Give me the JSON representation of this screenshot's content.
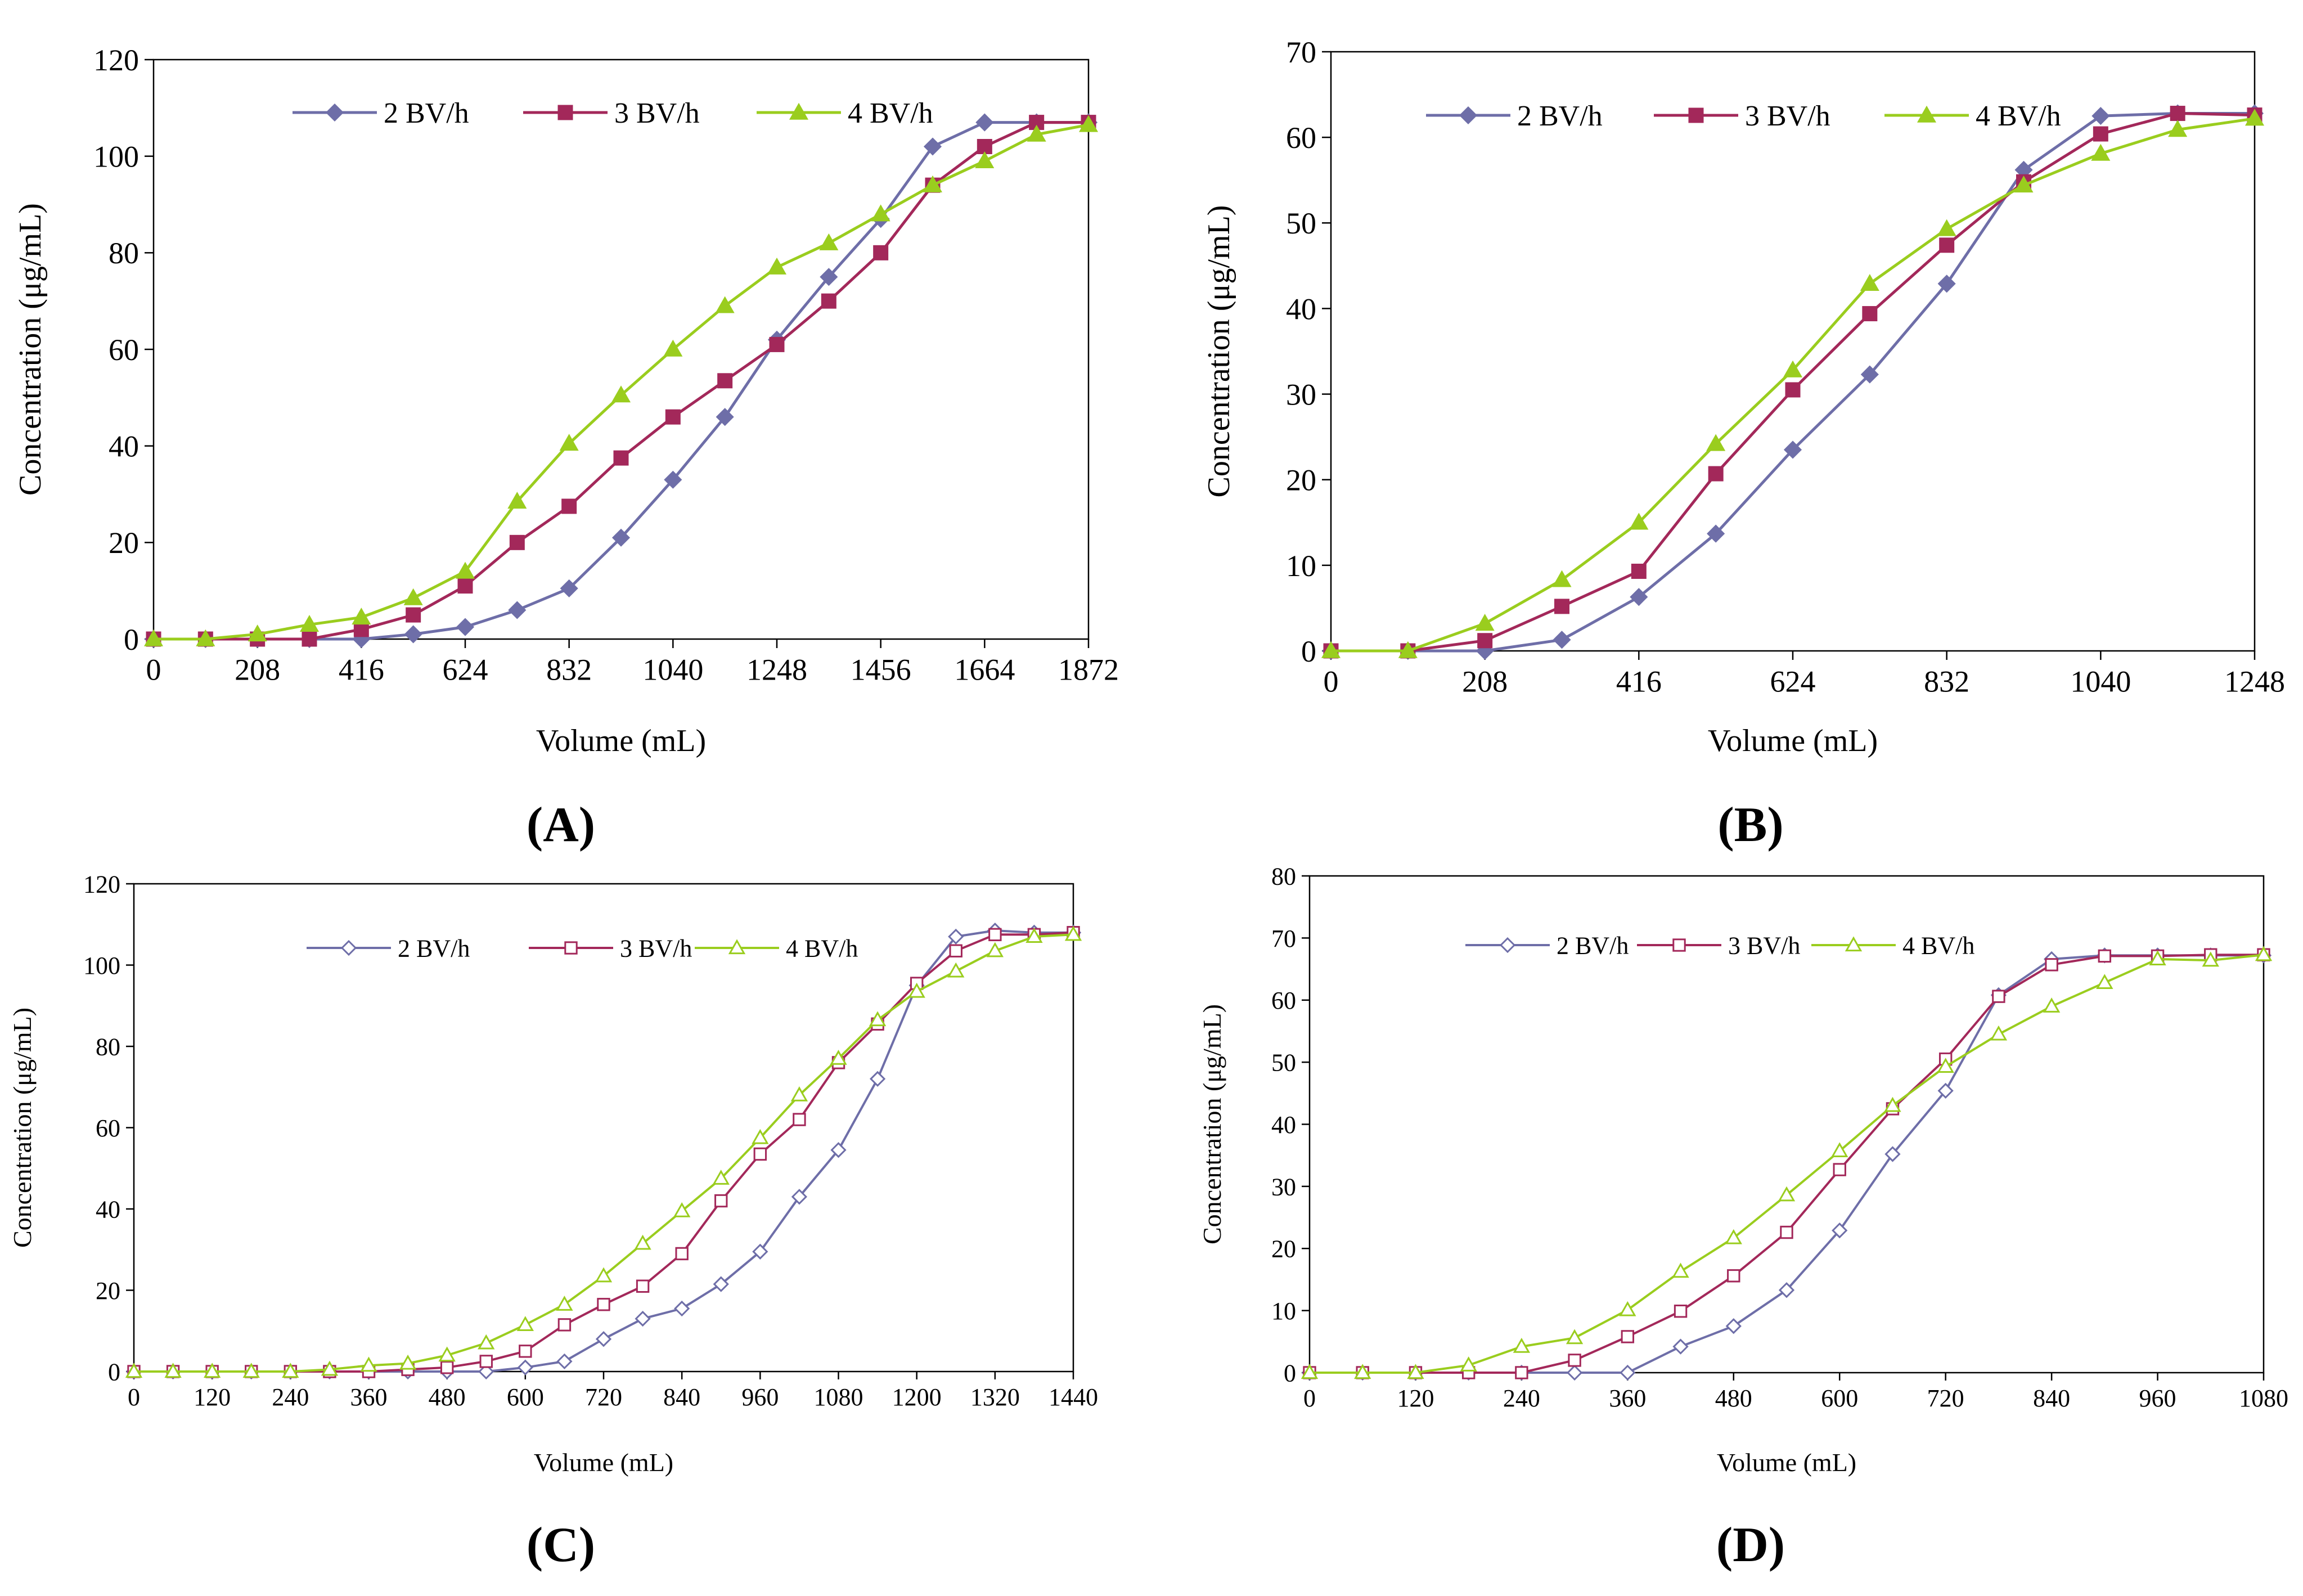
{
  "chart_data": [
    {
      "panel": "(A)",
      "type": "line",
      "xlabel": "Volume (mL)",
      "ylabel": "Concentration (μg/mL)",
      "xlim": [
        0,
        1872
      ],
      "ylim": [
        0,
        120
      ],
      "xticks": [
        0,
        208,
        416,
        624,
        832,
        1040,
        1248,
        1456,
        1664,
        1872
      ],
      "yticks": [
        0,
        20,
        40,
        60,
        80,
        100,
        120
      ],
      "marker_fill": true,
      "legend": "top",
      "grid": false,
      "x": [
        0,
        104,
        208,
        312,
        416,
        520,
        624,
        728,
        832,
        936,
        1040,
        1144,
        1248,
        1352,
        1456,
        1560,
        1664,
        1768,
        1872
      ],
      "series": [
        {
          "name": "2 BV/h",
          "color": "#6E6EA8",
          "marker": "diamond",
          "values": [
            0,
            0,
            0,
            0,
            0,
            1,
            2.5,
            6,
            10.5,
            21,
            33,
            46,
            62,
            75,
            87,
            102,
            107,
            107,
            107
          ]
        },
        {
          "name": "3 BV/h",
          "color": "#A3285A",
          "marker": "square",
          "values": [
            0,
            0,
            0,
            0,
            2,
            5,
            11,
            20,
            27.5,
            37.5,
            46,
            53.5,
            61,
            70,
            80,
            94,
            102,
            107,
            107
          ]
        },
        {
          "name": "4 BV/h",
          "color": "#9ACD1E",
          "marker": "triangle",
          "values": [
            0,
            0,
            1,
            3,
            4.5,
            8.5,
            14,
            28.5,
            40.5,
            50.5,
            60,
            69,
            77,
            82,
            88,
            94,
            99,
            104.5,
            106.5
          ]
        }
      ]
    },
    {
      "panel": "(B)",
      "type": "line",
      "xlabel": "Volume (mL)",
      "ylabel": "Concentration (μg/mL)",
      "xlim": [
        0,
        1248
      ],
      "ylim": [
        0,
        70
      ],
      "xticks": [
        0,
        208,
        416,
        624,
        832,
        1040,
        1248
      ],
      "yticks": [
        0,
        10,
        20,
        30,
        40,
        50,
        60,
        70
      ],
      "marker_fill": true,
      "legend": "top",
      "grid": false,
      "x": [
        0,
        104,
        208,
        312,
        416,
        520,
        624,
        728,
        832,
        936,
        1040,
        1144,
        1248
      ],
      "series": [
        {
          "name": "2 BV/h",
          "color": "#6E6EA8",
          "marker": "diamond",
          "values": [
            0,
            0,
            0,
            1.3,
            6.3,
            13.7,
            23.5,
            32.3,
            42.9,
            56.2,
            62.5,
            62.8,
            62.8
          ]
        },
        {
          "name": "3 BV/h",
          "color": "#A3285A",
          "marker": "square",
          "values": [
            0,
            0,
            1.2,
            5.2,
            9.3,
            20.7,
            30.5,
            39.4,
            47.4,
            54.8,
            60.4,
            62.8,
            62.6
          ]
        },
        {
          "name": "4 BV/h",
          "color": "#9ACD1E",
          "marker": "triangle",
          "values": [
            0,
            0,
            3.2,
            8.3,
            15,
            24.2,
            32.8,
            42.9,
            49.3,
            54.4,
            58.1,
            60.9,
            62.2
          ]
        }
      ]
    },
    {
      "panel": "(C)",
      "type": "line",
      "xlabel": "Volume (mL)",
      "ylabel": "Concentration (μg/mL)",
      "xlim": [
        0,
        1440
      ],
      "ylim": [
        0,
        120
      ],
      "xticks": [
        0,
        120,
        240,
        360,
        480,
        600,
        720,
        840,
        960,
        1080,
        1200,
        1320,
        1440
      ],
      "yticks": [
        0,
        20,
        40,
        60,
        80,
        100,
        120
      ],
      "marker_fill": false,
      "legend": "top",
      "grid": false,
      "x": [
        0,
        60,
        120,
        180,
        240,
        300,
        360,
        420,
        480,
        540,
        600,
        660,
        720,
        780,
        840,
        900,
        960,
        1020,
        1080,
        1140,
        1200,
        1260,
        1320,
        1380,
        1440
      ],
      "series": [
        {
          "name": "2 BV/h",
          "color": "#6E6EA8",
          "marker": "diamond",
          "values": [
            0,
            0,
            0,
            0,
            0,
            0,
            0,
            0,
            0,
            0,
            1,
            2.5,
            8,
            13,
            15.5,
            21.5,
            29.5,
            43,
            54.5,
            72,
            95,
            107,
            108.5,
            108,
            108
          ]
        },
        {
          "name": "3 BV/h",
          "color": "#A3285A",
          "marker": "square",
          "values": [
            0,
            0,
            0,
            0,
            0,
            0,
            0,
            0.5,
            1,
            2.5,
            5,
            11.5,
            16.5,
            21,
            29,
            42,
            53.5,
            62,
            76,
            85.5,
            95.5,
            103.5,
            107.5,
            107.5,
            108
          ]
        },
        {
          "name": "4 BV/h",
          "color": "#9ACD1E",
          "marker": "triangle",
          "values": [
            0,
            0,
            0,
            0,
            0,
            0.5,
            1.5,
            2,
            4,
            7,
            11.5,
            16.5,
            23.5,
            31.5,
            39.5,
            47.5,
            57.5,
            68,
            77,
            86.5,
            93.5,
            98.5,
            103.5,
            107,
            107.5
          ]
        }
      ]
    },
    {
      "panel": "(D)",
      "type": "line",
      "xlabel": "Volume (mL)",
      "ylabel": "Concentration (μg/mL)",
      "xlim": [
        0,
        1080
      ],
      "ylim": [
        0,
        80
      ],
      "xticks": [
        0,
        120,
        240,
        360,
        480,
        600,
        720,
        840,
        960,
        1080
      ],
      "yticks": [
        0,
        10,
        20,
        30,
        40,
        50,
        60,
        70,
        80
      ],
      "marker_fill": false,
      "legend": "top",
      "grid": false,
      "x": [
        0,
        60,
        120,
        180,
        240,
        300,
        360,
        420,
        480,
        540,
        600,
        660,
        720,
        780,
        840,
        900,
        960,
        1020,
        1080
      ],
      "series": [
        {
          "name": "2 BV/h",
          "color": "#6E6EA8",
          "marker": "diamond",
          "values": [
            0,
            0,
            0,
            0,
            0,
            0,
            0,
            4.2,
            7.5,
            13.3,
            22.9,
            35.2,
            45.4,
            60.8,
            66.6,
            67.2,
            67.2,
            67.2,
            67.2
          ]
        },
        {
          "name": "3 BV/h",
          "color": "#A3285A",
          "marker": "square",
          "values": [
            0,
            0,
            0,
            0,
            0,
            2,
            5.8,
            9.9,
            15.6,
            22.6,
            32.7,
            42.5,
            50.5,
            60.6,
            65.7,
            67.1,
            67.1,
            67.3,
            67.3
          ]
        },
        {
          "name": "4 BV/h",
          "color": "#9ACD1E",
          "marker": "triangle",
          "values": [
            0,
            0,
            0,
            1.2,
            4.2,
            5.6,
            10.1,
            16.3,
            21.7,
            28.6,
            35.7,
            43,
            49.3,
            54.5,
            59,
            62.8,
            66.6,
            66.4,
            67.3
          ]
        }
      ]
    }
  ]
}
